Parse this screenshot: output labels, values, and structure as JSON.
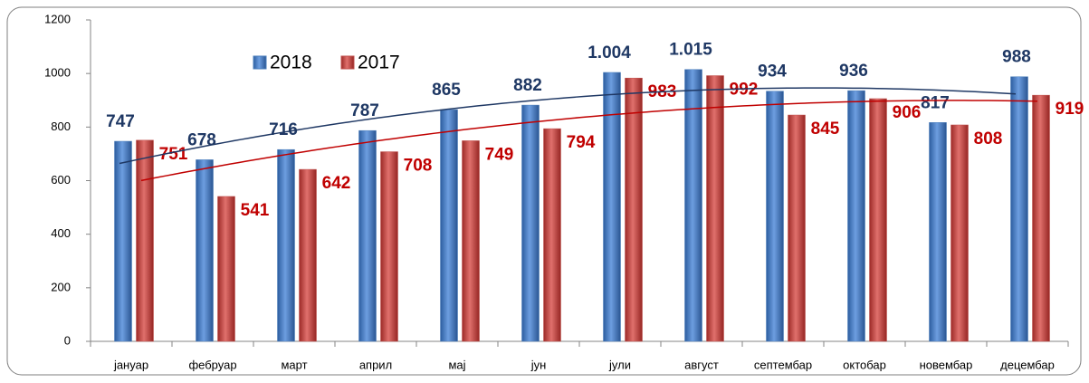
{
  "chart_data": {
    "type": "bar",
    "categories": [
      "јануар",
      "фебруар",
      "март",
      "април",
      "мај",
      "јун",
      "јули",
      "август",
      "септембар",
      "октобар",
      "новембар",
      "децембар"
    ],
    "series": [
      {
        "name": "2018",
        "color": "#4a7ebb",
        "label_color": "#1f3864",
        "trendline": "polynomial",
        "values": [
          747,
          678,
          716,
          787,
          865,
          882,
          1004,
          1015,
          934,
          936,
          817,
          988
        ],
        "value_labels": [
          "747",
          "678",
          "716",
          "787",
          "865",
          "882",
          "1.004",
          "1.015",
          "934",
          "936",
          "817",
          "988"
        ]
      },
      {
        "name": "2017",
        "color": "#c0504d",
        "label_color": "#c00000",
        "trendline": "polynomial",
        "values": [
          751,
          541,
          642,
          708,
          749,
          794,
          983,
          992,
          845,
          906,
          808,
          919
        ]
      }
    ],
    "ylim": [
      0,
      1200
    ],
    "yticks": [
      0,
      200,
      400,
      600,
      800,
      1000,
      1200
    ],
    "legend": "top-left"
  }
}
